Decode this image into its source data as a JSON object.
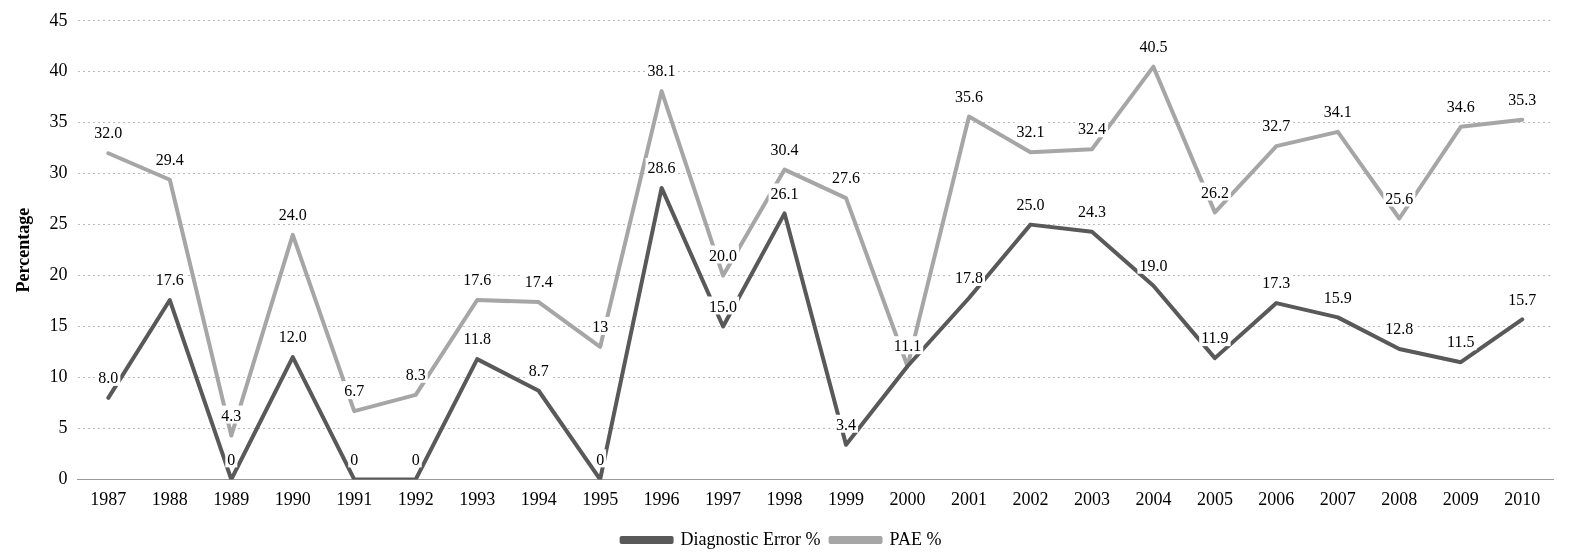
{
  "chart_data": {
    "type": "line",
    "ylabel": "Percentage",
    "categories": [
      "1987",
      "1988",
      "1989",
      "1990",
      "1991",
      "1992",
      "1993",
      "1994",
      "1995",
      "1996",
      "1997",
      "1998",
      "1999",
      "2000",
      "2001",
      "2002",
      "2003",
      "2004",
      "2005",
      "2006",
      "2007",
      "2008",
      "2009",
      "2010"
    ],
    "series": [
      {
        "name": "Diagnostic Error %",
        "color": "#595959",
        "values": [
          8.0,
          17.6,
          0,
          12.0,
          0,
          0,
          11.8,
          8.7,
          0,
          28.6,
          15.0,
          26.1,
          3.4,
          11.1,
          17.8,
          25.0,
          24.3,
          19.0,
          11.9,
          17.3,
          15.9,
          12.8,
          11.5,
          15.7
        ],
        "value_labels": [
          "8.0",
          "17.6",
          "0",
          "12.0",
          "0",
          "0",
          "11.8",
          "8.7",
          "0",
          "28.6",
          "15.0",
          "26.1",
          "3.4",
          "11.1",
          "17.8",
          "25.0",
          "24.3",
          "19.0",
          "11.9",
          "17.3",
          "15.9",
          "12.8",
          "11.5",
          "15.7"
        ]
      },
      {
        "name": "PAE %",
        "color": "#a6a6a6",
        "values": [
          32.0,
          29.4,
          4.3,
          24.0,
          6.7,
          8.3,
          17.6,
          17.4,
          13,
          38.1,
          20.0,
          30.4,
          27.6,
          11.1,
          35.6,
          32.1,
          32.4,
          40.5,
          26.2,
          32.7,
          34.1,
          25.6,
          34.6,
          35.3
        ],
        "value_labels": [
          "32.0",
          "29.4",
          "4.3",
          "24.0",
          "6.7",
          "8.3",
          "17.6",
          "17.4",
          "13",
          "38.1",
          "20.0",
          "30.4",
          "27.6",
          null,
          "35.6",
          "32.1",
          "32.4",
          "40.5",
          "26.2",
          "32.7",
          "34.1",
          "25.6",
          "34.6",
          "35.3"
        ]
      }
    ],
    "ylim": [
      0,
      45
    ],
    "yticks": [
      0,
      5,
      10,
      15,
      20,
      25,
      30,
      35,
      40,
      45
    ],
    "grid": "y",
    "legend": "bottom",
    "marker": "none",
    "line_style": "solid"
  }
}
